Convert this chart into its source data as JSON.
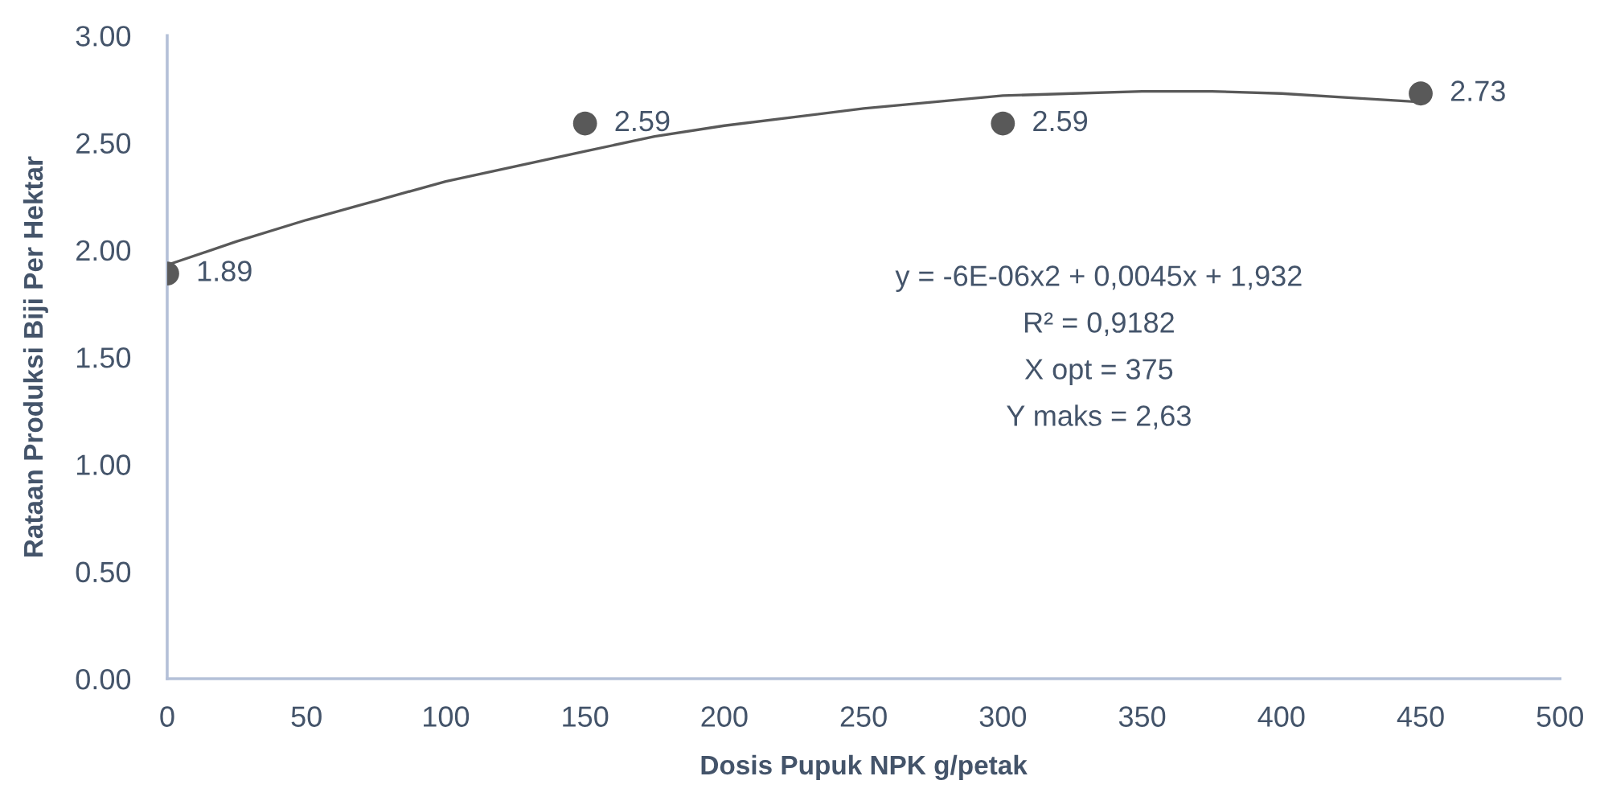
{
  "chart_data": {
    "type": "scatter",
    "xlabel": "Dosis Pupuk NPK g/petak",
    "ylabel": "Rataan Produksi Biji Per Hektar",
    "xlim": [
      0,
      500
    ],
    "ylim": [
      0,
      3
    ],
    "xticks": [
      0,
      50,
      100,
      150,
      200,
      250,
      300,
      350,
      400,
      450,
      500
    ],
    "yticks": [
      {
        "value": 0,
        "label": "0.00"
      },
      {
        "value": 0.5,
        "label": "0.50"
      },
      {
        "value": 1,
        "label": "1.00"
      },
      {
        "value": 1.5,
        "label": "1.50"
      },
      {
        "value": 2,
        "label": "2.00"
      },
      {
        "value": 2.5,
        "label": "2.50"
      },
      {
        "value": 3,
        "label": "3.00"
      }
    ],
    "series": [
      {
        "color": "#595959",
        "marker": "circle",
        "x": [
          0,
          150,
          300,
          450
        ],
        "values": [
          1.89,
          2.59,
          2.59,
          2.73
        ],
        "value_labels": [
          "1.89",
          "2.59",
          "2.59",
          "2.73"
        ]
      },
      {
        "type": "line",
        "color": "#595959",
        "marker": "none",
        "line_style": "solid",
        "x": [
          0,
          25,
          50,
          75,
          100,
          125,
          150,
          175,
          200,
          225,
          250,
          275,
          300,
          325,
          350,
          375,
          400,
          425,
          450
        ],
        "values": [
          1.93,
          2.04,
          2.14,
          2.23,
          2.32,
          2.39,
          2.46,
          2.53,
          2.58,
          2.62,
          2.66,
          2.69,
          2.72,
          2.73,
          2.74,
          2.74,
          2.73,
          2.71,
          2.69
        ]
      }
    ],
    "annotations": [
      "y = -6E-06x2 + 0,0045x + 1,932",
      "R² = 0,9182",
      "X opt = 375",
      "Y maks = 2,63"
    ]
  }
}
